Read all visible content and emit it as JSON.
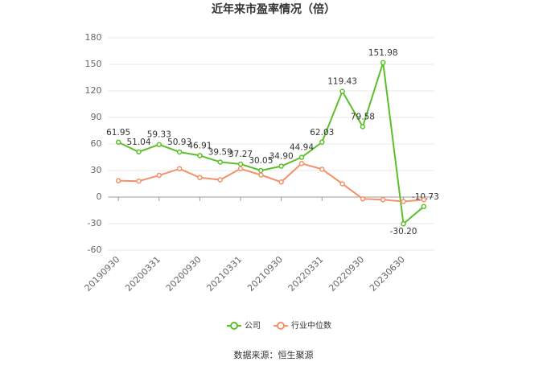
{
  "chart_data": {
    "type": "line",
    "title": "近年来市盈率情况（倍）",
    "categories": [
      "20190930",
      null,
      "20200331",
      null,
      "20200930",
      null,
      "20210331",
      null,
      "20210930",
      null,
      "20220331",
      null,
      "20220930",
      null,
      "20230630",
      null
    ],
    "series": [
      {
        "name": "公司",
        "color": "#5cbf2a",
        "values": [
          61.95,
          51.04,
          59.33,
          50.93,
          46.91,
          39.59,
          37.27,
          30.05,
          34.9,
          44.94,
          62.03,
          119.43,
          79.58,
          151.98,
          -30.2,
          -10.73
        ],
        "value_labels": [
          "61.95",
          "51.04",
          "59.33",
          "50.93",
          "46.91",
          "39.59",
          "37.27",
          "30.05",
          "34.90",
          "44.94",
          "62.03",
          "119.43",
          "79.58",
          "151.98",
          "-30.20",
          "-10.73"
        ]
      },
      {
        "name": "行业中位数",
        "color": "#f4916a",
        "values": [
          18.5,
          18,
          24.5,
          32,
          22,
          19.5,
          32,
          25,
          17,
          38,
          31.5,
          15,
          -2,
          -3,
          -5,
          -3
        ]
      }
    ],
    "ylim": [
      -60,
      180
    ],
    "yticks": [
      -60,
      -30,
      0,
      30,
      60,
      90,
      120,
      150,
      180
    ],
    "grid": true,
    "source": "数据来源：恒生聚源"
  }
}
